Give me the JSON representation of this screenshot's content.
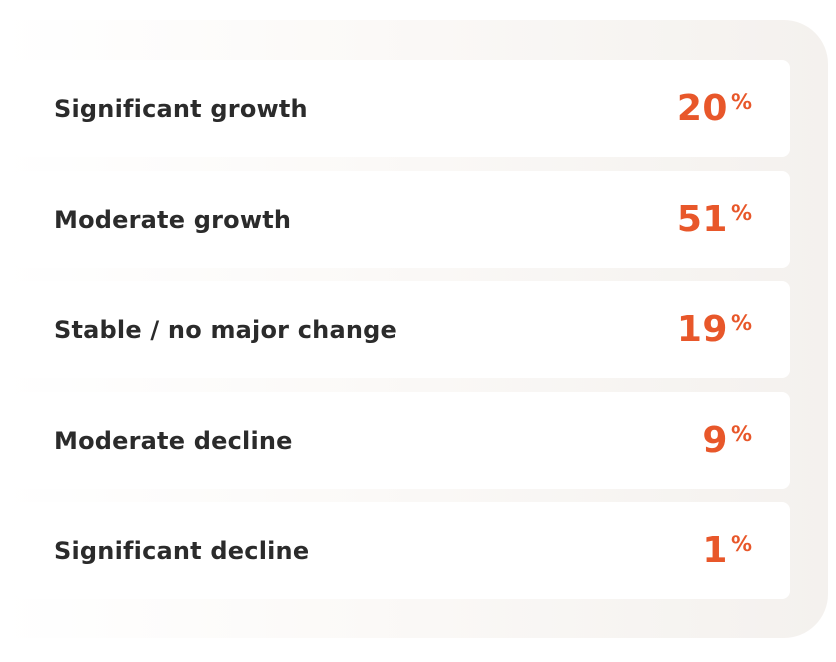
{
  "accent_color": "#e8572a",
  "rows": [
    {
      "label": "Significant growth",
      "value": "20",
      "unit": "%"
    },
    {
      "label": "Moderate growth",
      "value": "51",
      "unit": "%"
    },
    {
      "label": "Stable / no major change",
      "value": "19",
      "unit": "%"
    },
    {
      "label": "Moderate decline",
      "value": "9",
      "unit": "%"
    },
    {
      "label": "Significant decline",
      "value": "1",
      "unit": "%"
    }
  ]
}
